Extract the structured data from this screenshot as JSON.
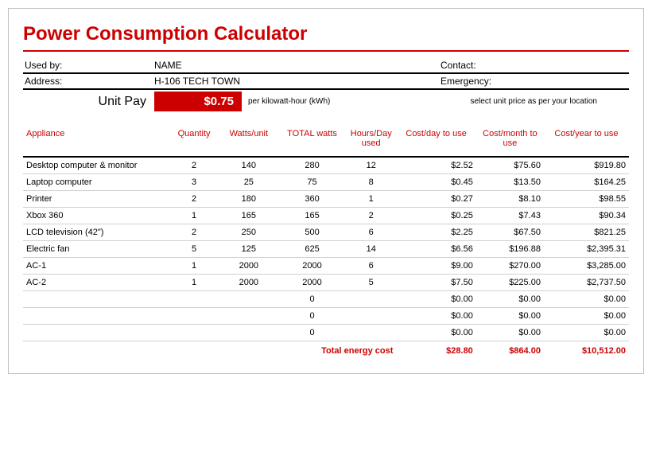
{
  "title": "Power Consumption Calculator",
  "info": {
    "usedby_label": "Used by:",
    "usedby_value": "NAME",
    "contact_label": "Contact:",
    "address_label": "Address:",
    "address_value": "H-106 TECH TOWN",
    "emergency_label": "Emergency:"
  },
  "unit": {
    "label": "Unit Pay",
    "value": "$0.75",
    "suffix": "per kilowatt-hour (kWh)",
    "note": "select unit price as per your location"
  },
  "columns": {
    "appliance": "Appliance",
    "quantity": "Quantity",
    "wattsunit": "Watts/unit",
    "totalwatts": "TOTAL watts",
    "hoursday": "Hours/Day used",
    "costday": "Cost/day to use",
    "costmonth": "Cost/month to use",
    "costyear": "Cost/year to use"
  },
  "rows": [
    {
      "app": "Desktop computer & monitor",
      "qty": "2",
      "wu": "140",
      "tw": "280",
      "hd": "12",
      "cd": "$2.52",
      "cm": "$75.60",
      "cy": "$919.80"
    },
    {
      "app": "Laptop computer",
      "qty": "3",
      "wu": "25",
      "tw": "75",
      "hd": "8",
      "cd": "$0.45",
      "cm": "$13.50",
      "cy": "$164.25"
    },
    {
      "app": "Printer",
      "qty": "2",
      "wu": "180",
      "tw": "360",
      "hd": "1",
      "cd": "$0.27",
      "cm": "$8.10",
      "cy": "$98.55"
    },
    {
      "app": "Xbox 360",
      "qty": "1",
      "wu": "165",
      "tw": "165",
      "hd": "2",
      "cd": "$0.25",
      "cm": "$7.43",
      "cy": "$90.34"
    },
    {
      "app": "LCD television (42\")",
      "qty": "2",
      "wu": "250",
      "tw": "500",
      "hd": "6",
      "cd": "$2.25",
      "cm": "$67.50",
      "cy": "$821.25"
    },
    {
      "app": "Electric fan",
      "qty": "5",
      "wu": "125",
      "tw": "625",
      "hd": "14",
      "cd": "$6.56",
      "cm": "$196.88",
      "cy": "$2,395.31"
    },
    {
      "app": "AC-1",
      "qty": "1",
      "wu": "2000",
      "tw": "2000",
      "hd": "6",
      "cd": "$9.00",
      "cm": "$270.00",
      "cy": "$3,285.00"
    },
    {
      "app": "AC-2",
      "qty": "1",
      "wu": "2000",
      "tw": "2000",
      "hd": "5",
      "cd": "$7.50",
      "cm": "$225.00",
      "cy": "$2,737.50"
    },
    {
      "app": "",
      "qty": "",
      "wu": "",
      "tw": "0",
      "hd": "",
      "cd": "$0.00",
      "cm": "$0.00",
      "cy": "$0.00"
    },
    {
      "app": "",
      "qty": "",
      "wu": "",
      "tw": "0",
      "hd": "",
      "cd": "$0.00",
      "cm": "$0.00",
      "cy": "$0.00"
    },
    {
      "app": "",
      "qty": "",
      "wu": "",
      "tw": "0",
      "hd": "",
      "cd": "$0.00",
      "cm": "$0.00",
      "cy": "$0.00"
    }
  ],
  "totals": {
    "label": "Total energy cost",
    "day": "$28.80",
    "month": "$864.00",
    "year": "$10,512.00"
  },
  "style": {
    "accent": "#cc0000",
    "border": "#c0c0c0",
    "row_border": "#d0d0d0",
    "black": "#000000"
  }
}
